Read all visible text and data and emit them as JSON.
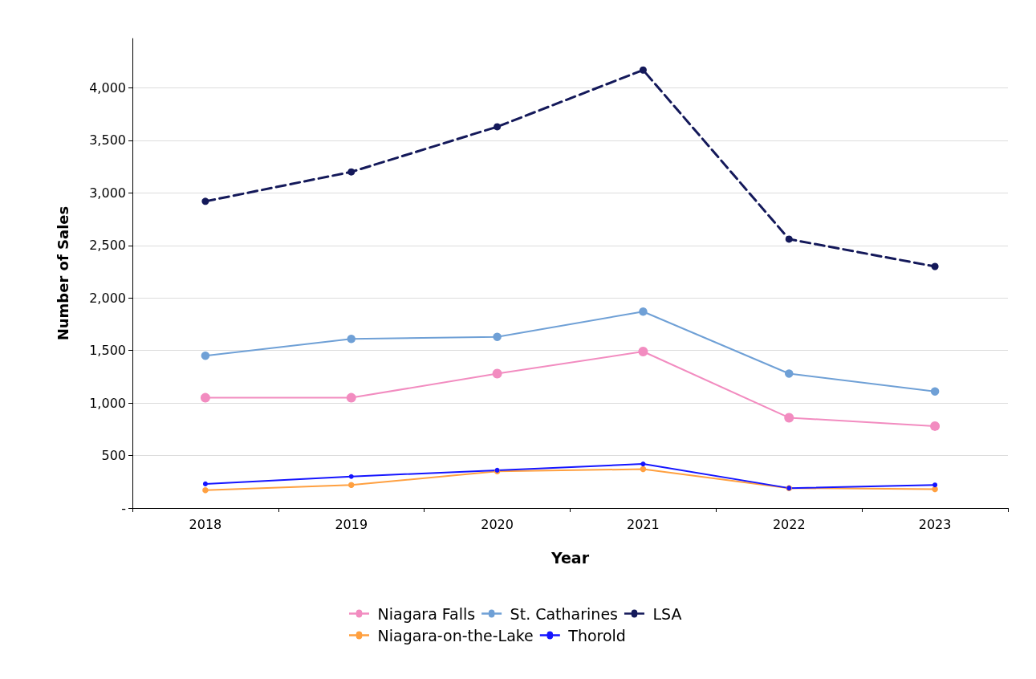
{
  "chart_data": {
    "type": "line",
    "xlabel": "Year",
    "ylabel": "Number of Sales",
    "categories": [
      "2018",
      "2019",
      "2020",
      "2021",
      "2022",
      "2023"
    ],
    "series": [
      {
        "name": "Niagara Falls",
        "color": "#f28cc0",
        "values": [
          1050,
          1050,
          1280,
          1490,
          860,
          780
        ]
      },
      {
        "name": "St. Catharines",
        "color": "#6fa0d6",
        "values": [
          1450,
          1610,
          1630,
          1870,
          1280,
          1110
        ]
      },
      {
        "name": "LSA",
        "color": "#14195a",
        "line_style": "dashed",
        "values": [
          2920,
          3200,
          3630,
          4170,
          2560,
          2300
        ]
      },
      {
        "name": "Niagara-on-the-Lake",
        "color": "#ffa040",
        "values": [
          170,
          220,
          350,
          370,
          190,
          180
        ]
      },
      {
        "name": "Thorold",
        "color": "#1515ff",
        "values": [
          230,
          300,
          360,
          420,
          190,
          220
        ]
      }
    ],
    "ylim": [
      0,
      4470
    ],
    "yticks": [
      {
        "value": 0,
        "label": "-"
      },
      {
        "value": 500,
        "label": "500"
      },
      {
        "value": 1000,
        "label": "1,000"
      },
      {
        "value": 1500,
        "label": "1,500"
      },
      {
        "value": 2000,
        "label": "2,000"
      },
      {
        "value": 2500,
        "label": "2,500"
      },
      {
        "value": 3000,
        "label": "3,000"
      },
      {
        "value": 3500,
        "label": "3,500"
      },
      {
        "value": 4000,
        "label": "4,000"
      }
    ],
    "grid": "y",
    "legend": "bottom",
    "marker": "circle",
    "line_style": "solid"
  }
}
